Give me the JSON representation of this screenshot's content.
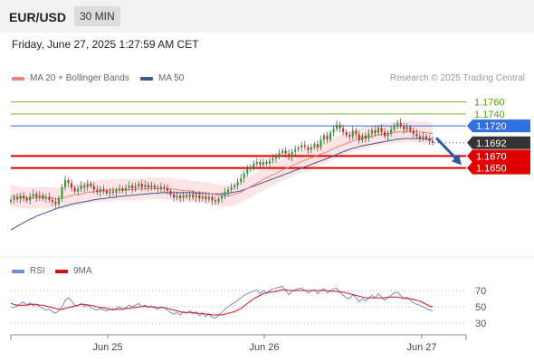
{
  "header": {
    "symbol": "EUR/USD",
    "timeframe": "30 MIN"
  },
  "datetime": "Friday, June 27, 2025 1:27:59 AM CET",
  "legend": {
    "ma20": {
      "label": "MA 20 + Bollinger Bands",
      "color": "#f08080"
    },
    "ma50": {
      "label": "MA 50",
      "color": "#3b5998"
    }
  },
  "credit": "Research © 2025 Trading Central",
  "rsi_legend": {
    "rsi": {
      "label": "RSI",
      "color": "#6f8ed8"
    },
    "ma9": {
      "label": "9MA",
      "color": "#d01010"
    }
  },
  "chart_data": [
    {
      "type": "candlestick",
      "title": "EUR/USD 30 MIN",
      "ylim": [
        1.1505,
        1.1785
      ],
      "x_ticks": [
        "Jun 25",
        "Jun 26",
        "Jun 27"
      ],
      "levels": [
        {
          "value": 1.176,
          "label": "1.1760",
          "color": "#7cb342",
          "style": "resistance-thin"
        },
        {
          "value": 1.174,
          "label": "1.1740",
          "color": "#7cb342",
          "style": "resistance-thin"
        },
        {
          "value": 1.172,
          "label": "1.1720",
          "color": "#2f6fe0",
          "style": "pivot"
        },
        {
          "value": 1.1692,
          "label": "1.1692",
          "color": "#333333",
          "style": "current-price"
        },
        {
          "value": 1.167,
          "label": "1.1670",
          "color": "#e00000",
          "style": "target"
        },
        {
          "value": 1.165,
          "label": "1.1650",
          "color": "#e00000",
          "style": "target"
        }
      ],
      "forecast_arrow": {
        "from": 1.17,
        "to": 1.1655,
        "color": "#2a5aa8"
      },
      "colors": {
        "up": "#2ca02c",
        "down": "#d62728",
        "band": "#fde0e0",
        "ma20": "#f08080",
        "ma50": "#3b5998"
      },
      "close_series": [
        1.1597,
        1.1601,
        1.1598,
        1.1604,
        1.16,
        1.1596,
        1.1603,
        1.1607,
        1.1601,
        1.1605,
        1.1599,
        1.1602,
        1.1597,
        1.1594,
        1.159,
        1.16,
        1.1618,
        1.163,
        1.1625,
        1.1617,
        1.1611,
        1.1615,
        1.1621,
        1.1618,
        1.1624,
        1.162,
        1.1614,
        1.161,
        1.1615,
        1.1612,
        1.1608,
        1.1611,
        1.1609,
        1.1613,
        1.1616,
        1.1612,
        1.1617,
        1.1621,
        1.1616,
        1.162,
        1.1624,
        1.1618,
        1.1622,
        1.1618,
        1.1621,
        1.1617,
        1.1615,
        1.1619,
        1.1617,
        1.1612,
        1.1606,
        1.1601,
        1.1604,
        1.16,
        1.1605,
        1.1602,
        1.1606,
        1.1601,
        1.1605,
        1.1599,
        1.1603,
        1.1598,
        1.1602,
        1.1596,
        1.1594,
        1.1599,
        1.1603,
        1.161,
        1.1614,
        1.1618,
        1.1621,
        1.1627,
        1.1633,
        1.1641,
        1.1648,
        1.1652,
        1.1657,
        1.166,
        1.1655,
        1.166,
        1.1657,
        1.1662,
        1.1666,
        1.167,
        1.1675,
        1.1679,
        1.1674,
        1.1668,
        1.1677,
        1.1681,
        1.1684,
        1.1688,
        1.1685,
        1.168,
        1.1685,
        1.169,
        1.1684,
        1.1697,
        1.1704,
        1.1697,
        1.1709,
        1.1715,
        1.1722,
        1.1716,
        1.171,
        1.1705,
        1.1702,
        1.1712,
        1.1706,
        1.1696,
        1.1704,
        1.1699,
        1.1707,
        1.1713,
        1.1708,
        1.1717,
        1.171,
        1.1703,
        1.1708,
        1.1714,
        1.1721,
        1.1725,
        1.172,
        1.1714,
        1.1718,
        1.1712,
        1.1707,
        1.1703,
        1.17,
        1.1703,
        1.1699,
        1.1695,
        1.1692
      ],
      "ma20": [
        1.1603,
        1.1603,
        1.1602,
        1.1601,
        1.1601,
        1.16,
        1.16,
        1.16,
        1.16,
        1.1601,
        1.1601,
        1.1601,
        1.16,
        1.16,
        1.1599,
        1.1599,
        1.16,
        1.1601,
        1.1603,
        1.1604,
        1.1605,
        1.1606,
        1.1607,
        1.1608,
        1.161,
        1.161,
        1.1611,
        1.1611,
        1.1612,
        1.1612,
        1.1613,
        1.1613,
        1.1614,
        1.1614,
        1.1614,
        1.1614,
        1.1614,
        1.1614,
        1.1614,
        1.1614,
        1.1615,
        1.1615,
        1.1615,
        1.1616,
        1.1616,
        1.1616,
        1.1616,
        1.1616,
        1.1616,
        1.1616,
        1.1615,
        1.1615,
        1.1614,
        1.1613,
        1.1613,
        1.1612,
        1.1612,
        1.1611,
        1.161,
        1.161,
        1.1609,
        1.1609,
        1.1608,
        1.1607,
        1.1606,
        1.1605,
        1.1604,
        1.1604,
        1.1604,
        1.1605,
        1.1606,
        1.1608,
        1.161,
        1.1613,
        1.1616,
        1.1619,
        1.1622,
        1.1625,
        1.1628,
        1.1631,
        1.1634,
        1.1636,
        1.1639,
        1.1641,
        1.1644,
        1.1647,
        1.1649,
        1.1651,
        1.1654,
        1.1656,
        1.1659,
        1.1661,
        1.1663,
        1.1665,
        1.1667,
        1.1669,
        1.1671,
        1.1673,
        1.1675,
        1.1677,
        1.168,
        1.1682,
        1.1685,
        1.1687,
        1.1689,
        1.1691,
        1.1693,
        1.1695,
        1.1697,
        1.1698,
        1.17,
        1.1701,
        1.1702,
        1.1703,
        1.1704,
        1.1705,
        1.1706,
        1.1707,
        1.1707,
        1.1708,
        1.1709,
        1.171,
        1.171,
        1.1711,
        1.1711,
        1.1711,
        1.1711,
        1.171,
        1.171,
        1.1709,
        1.1709,
        1.1708,
        1.1707
      ],
      "ma50": [
        1.1547,
        1.155,
        1.1553,
        1.1556,
        1.1559,
        1.1562,
        1.1565,
        1.1567,
        1.157,
        1.1572,
        1.1574,
        1.1576,
        1.1578,
        1.158,
        1.1582,
        1.1584,
        1.1585,
        1.1587,
        1.1588,
        1.159,
        1.1591,
        1.1592,
        1.1593,
        1.1594,
        1.1595,
        1.1596,
        1.1597,
        1.1598,
        1.1599,
        1.1599,
        1.16,
        1.1601,
        1.1601,
        1.1602,
        1.1603,
        1.1603,
        1.1604,
        1.1604,
        1.1605,
        1.1605,
        1.1606,
        1.1606,
        1.1607,
        1.1607,
        1.1608,
        1.1608,
        1.1608,
        1.1609,
        1.1609,
        1.1609,
        1.1609,
        1.1609,
        1.1609,
        1.1609,
        1.1609,
        1.1609,
        1.1609,
        1.1609,
        1.1608,
        1.1608,
        1.1608,
        1.1608,
        1.1608,
        1.1607,
        1.1607,
        1.1607,
        1.1607,
        1.1608,
        1.1608,
        1.1609,
        1.161,
        1.1611,
        1.1612,
        1.1614,
        1.1616,
        1.1618,
        1.162,
        1.1622,
        1.1624,
        1.1626,
        1.1628,
        1.163,
        1.1632,
        1.1634,
        1.1636,
        1.1638,
        1.164,
        1.1642,
        1.1644,
        1.1646,
        1.1648,
        1.165,
        1.1652,
        1.1654,
        1.1656,
        1.1658,
        1.166,
        1.1662,
        1.1664,
        1.1666,
        1.1668,
        1.167,
        1.1673,
        1.1675,
        1.1677,
        1.1679,
        1.1681,
        1.1683,
        1.1684,
        1.1686,
        1.1687,
        1.1688,
        1.1689,
        1.169,
        1.1691,
        1.1692,
        1.1693,
        1.1694,
        1.1695,
        1.1696,
        1.1697,
        1.1698,
        1.1698,
        1.1699,
        1.1699,
        1.1699,
        1.1699,
        1.1699,
        1.1699,
        1.1699,
        1.1698,
        1.1698,
        1.1698
      ],
      "band_width": 0.0018
    },
    {
      "type": "line",
      "title": "RSI",
      "ylim": [
        20,
        80
      ],
      "levels": [
        70,
        50,
        30
      ],
      "rsi": [
        50,
        49,
        51,
        54,
        56,
        52,
        55,
        51,
        53,
        50,
        48,
        46,
        47,
        44,
        42,
        45,
        50,
        58,
        61,
        57,
        52,
        51,
        54,
        50,
        53,
        49,
        47,
        46,
        48,
        46,
        45,
        47,
        46,
        48,
        50,
        47,
        49,
        52,
        50,
        52,
        54,
        50,
        52,
        49,
        51,
        48,
        47,
        50,
        49,
        46,
        43,
        41,
        43,
        40,
        44,
        42,
        45,
        41,
        44,
        39,
        42,
        38,
        41,
        37,
        36,
        40,
        43,
        47,
        50,
        53,
        55,
        58,
        61,
        64,
        66,
        68,
        69,
        71,
        66,
        70,
        67,
        70,
        72,
        73,
        74,
        75,
        70,
        65,
        69,
        71,
        72,
        73,
        70,
        67,
        69,
        71,
        66,
        70,
        72,
        67,
        70,
        72,
        73,
        68,
        64,
        61,
        60,
        65,
        61,
        56,
        60,
        57,
        61,
        64,
        61,
        66,
        62,
        58,
        61,
        64,
        67,
        68,
        64,
        60,
        62,
        58,
        55,
        53,
        52,
        50,
        48,
        46,
        45
      ],
      "ma9": [
        54,
        53,
        52,
        52,
        52,
        52,
        53,
        53,
        53,
        52,
        52,
        51,
        50,
        49,
        48,
        47,
        47,
        48,
        49,
        50,
        51,
        52,
        53,
        53,
        52,
        52,
        51,
        50,
        49,
        49,
        48,
        47,
        47,
        47,
        47,
        47,
        48,
        48,
        49,
        49,
        50,
        50,
        51,
        50,
        50,
        50,
        49,
        49,
        49,
        48,
        47,
        46,
        45,
        44,
        43,
        43,
        43,
        43,
        42,
        42,
        42,
        41,
        41,
        40,
        40,
        40,
        40,
        41,
        42,
        43,
        44,
        46,
        48,
        51,
        54,
        57,
        60,
        62,
        64,
        66,
        67,
        68,
        68,
        69,
        70,
        71,
        71,
        70,
        70,
        70,
        70,
        70,
        70,
        70,
        70,
        70,
        70,
        70,
        70,
        70,
        69,
        69,
        69,
        68,
        68,
        67,
        66,
        65,
        64,
        63,
        62,
        61,
        61,
        61,
        61,
        61,
        61,
        61,
        62,
        62,
        62,
        62,
        61,
        61,
        60,
        60,
        59,
        58,
        57,
        55,
        53,
        51,
        50
      ]
    }
  ]
}
